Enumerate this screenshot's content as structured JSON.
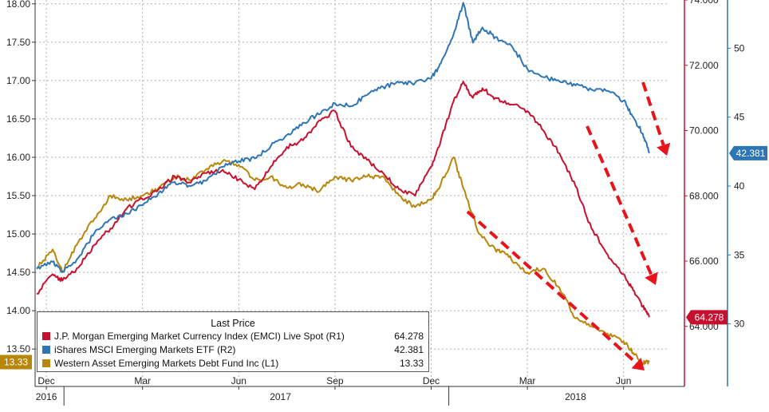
{
  "chart_data": {
    "type": "line",
    "legend": {
      "title": "Last Price",
      "placement": "bottom-left",
      "entries": [
        {
          "name": "J.P. Morgan Emerging Market Currency Index (EMCI) Live Spot",
          "axis": "(R1)",
          "value": "64.278",
          "color": "#c8102e"
        },
        {
          "name": "iShares MSCI Emerging Markets ETF",
          "axis": "(R2)",
          "value": "42.381",
          "color": "#2e75b6"
        },
        {
          "name": "Western Asset Emerging Markets Debt Fund Inc",
          "axis": "(L1)",
          "value": "13.33",
          "color": "#b8860b"
        }
      ]
    },
    "x_axis": {
      "month_labels": [
        "Dec",
        "Mar",
        "Jun",
        "Sep",
        "Dec",
        "Mar",
        "Jun"
      ],
      "month_positions": [
        0,
        3,
        6,
        9,
        12,
        15,
        18
      ],
      "year_labels": [
        "2016",
        "2017",
        "2018"
      ],
      "year_positions": [
        0,
        7.3,
        16.5
      ],
      "range": [
        -0.35,
        19.35
      ]
    },
    "left_axis": {
      "range": [
        13.2,
        18.05
      ],
      "ticks": [
        "13.50",
        "14.00",
        "14.50",
        "15.00",
        "15.50",
        "16.00",
        "16.50",
        "17.00",
        "17.50",
        "18.00"
      ],
      "last_value_badge": "13.33",
      "badge_color": "#b8860b"
    },
    "right_axis_1": {
      "range": [
        62.6,
        74.0
      ],
      "ticks": [
        "64.000",
        "66.000",
        "68.000",
        "70.000",
        "72.000",
        "74.000"
      ],
      "last_value_badge": "64.278",
      "badge_color": "#c8102e"
    },
    "right_axis_2": {
      "range": [
        26.5,
        53.5
      ],
      "ticks": [
        "30",
        "35",
        "40",
        "45",
        "50"
      ],
      "last_value_badge": "42.381",
      "badge_color": "#2e75b6"
    },
    "series": [
      {
        "name": "Western Asset Emerging Markets Debt Fund Inc",
        "axis": "left",
        "color": "#b8860b",
        "x": [
          -0.3,
          0.2,
          0.5,
          1.0,
          1.5,
          2.0,
          2.5,
          3.0,
          3.5,
          4.0,
          4.5,
          5.0,
          5.5,
          6.0,
          6.5,
          7.0,
          7.5,
          8.0,
          8.5,
          9.0,
          9.5,
          10.0,
          10.5,
          11.0,
          11.5,
          12.0,
          12.3,
          12.7,
          13.0,
          13.5,
          14.0,
          14.3,
          14.7,
          15.0,
          15.5,
          16.0,
          16.5,
          17.0,
          17.5,
          18.0,
          18.3,
          18.6,
          18.8
        ],
        "values": [
          14.55,
          14.8,
          14.5,
          14.9,
          15.2,
          15.5,
          15.45,
          15.5,
          15.6,
          15.75,
          15.7,
          15.85,
          15.95,
          15.9,
          15.7,
          15.75,
          15.6,
          15.65,
          15.55,
          15.75,
          15.7,
          15.75,
          15.75,
          15.5,
          15.35,
          15.45,
          15.65,
          16.0,
          15.6,
          15.0,
          14.8,
          14.75,
          14.6,
          14.5,
          14.55,
          14.3,
          13.9,
          13.8,
          13.7,
          13.6,
          13.45,
          13.32,
          13.33
        ]
      },
      {
        "name": "J.P. Morgan Emerging Market Currency Index (EMCI) Live Spot",
        "axis": "right1",
        "color": "#c8102e",
        "x": [
          -0.3,
          0.2,
          0.5,
          1.0,
          1.5,
          2.0,
          2.5,
          3.0,
          3.5,
          4.0,
          4.5,
          5.0,
          5.5,
          6.0,
          6.5,
          7.0,
          7.5,
          8.0,
          8.5,
          9.0,
          9.5,
          10.0,
          10.5,
          11.0,
          11.5,
          12.0,
          12.3,
          12.7,
          13.0,
          13.3,
          13.6,
          14.0,
          14.5,
          15.0,
          15.5,
          16.0,
          16.5,
          17.0,
          17.5,
          18.0,
          18.3,
          18.6,
          18.8
        ],
        "values": [
          65.0,
          65.6,
          65.4,
          65.8,
          66.5,
          67.0,
          67.6,
          67.9,
          68.2,
          68.6,
          68.4,
          68.7,
          68.8,
          68.5,
          68.2,
          68.9,
          69.5,
          69.7,
          70.3,
          70.6,
          69.5,
          69.1,
          68.7,
          68.2,
          68.0,
          68.9,
          69.7,
          70.9,
          71.5,
          71.0,
          71.3,
          71.0,
          70.8,
          70.6,
          70.0,
          69.3,
          68.3,
          67.0,
          66.2,
          65.6,
          65.1,
          64.6,
          64.278
        ]
      },
      {
        "name": "iShares MSCI Emerging Markets ETF",
        "axis": "right2",
        "color": "#2e75b6",
        "x": [
          -0.3,
          0.2,
          0.5,
          1.0,
          1.5,
          2.0,
          2.5,
          3.0,
          3.5,
          4.0,
          4.5,
          5.0,
          5.5,
          6.0,
          6.5,
          7.0,
          7.5,
          8.0,
          8.5,
          9.0,
          9.5,
          10.0,
          10.5,
          11.0,
          11.5,
          12.0,
          12.3,
          12.7,
          13.0,
          13.3,
          13.6,
          14.0,
          14.5,
          15.0,
          15.5,
          16.0,
          16.5,
          17.0,
          17.5,
          18.0,
          18.3,
          18.6,
          18.8
        ],
        "values": [
          34.0,
          34.5,
          33.8,
          34.8,
          36.6,
          37.6,
          38.0,
          38.6,
          39.5,
          40.3,
          40.0,
          40.4,
          41.4,
          41.8,
          42.0,
          42.9,
          43.7,
          44.6,
          45.2,
          46.0,
          45.8,
          46.6,
          47.2,
          47.5,
          47.5,
          47.8,
          48.9,
          51.0,
          53.3,
          50.4,
          51.5,
          50.8,
          50.2,
          48.5,
          47.9,
          47.6,
          47.3,
          47.0,
          46.9,
          46.2,
          45.0,
          43.8,
          42.381
        ]
      }
    ],
    "annotations": [
      {
        "type": "dashed-arrow",
        "color": "#e8141c",
        "description": "downward trend arrow over EEM"
      },
      {
        "type": "dashed-arrow",
        "color": "#e8141c",
        "description": "downward trend arrow over EMCI"
      },
      {
        "type": "dashed-arrow",
        "color": "#e8141c",
        "description": "downward trend arrow over EMD"
      }
    ]
  }
}
